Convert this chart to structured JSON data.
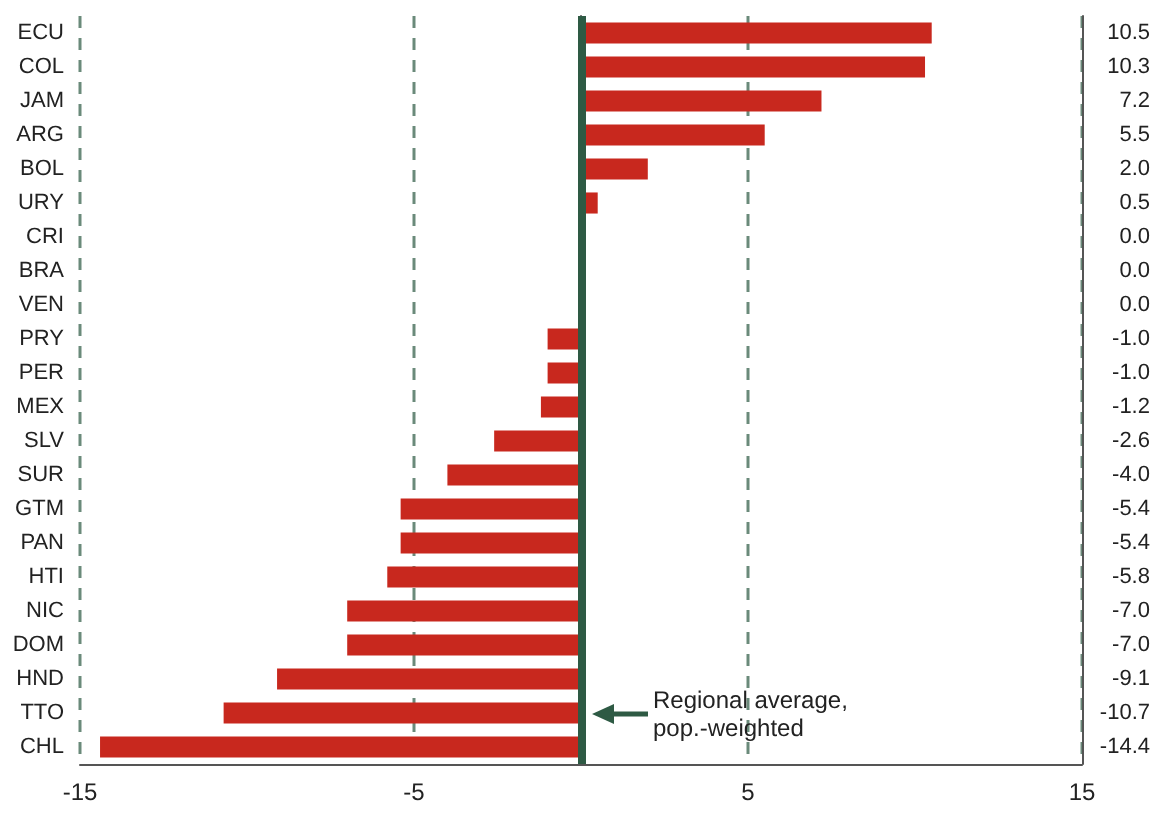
{
  "chart_data": {
    "type": "bar",
    "orientation": "horizontal",
    "categories": [
      "ECU",
      "COL",
      "JAM",
      "ARG",
      "BOL",
      "URY",
      "CRI",
      "BRA",
      "VEN",
      "PRY",
      "PER",
      "MEX",
      "SLV",
      "SUR",
      "GTM",
      "PAN",
      "HTI",
      "NIC",
      "DOM",
      "HND",
      "TTO",
      "CHL"
    ],
    "values": [
      10.5,
      10.3,
      7.2,
      5.5,
      2.0,
      0.5,
      0.0,
      0.0,
      0.0,
      -1.0,
      -1.0,
      -1.2,
      -2.6,
      -4.0,
      -5.4,
      -5.4,
      -5.8,
      -7.0,
      -7.0,
      -9.1,
      -10.7,
      -14.4
    ],
    "value_labels": [
      "10.5",
      "10.3",
      "7.2",
      "5.5",
      "2.0",
      "0.5",
      "0.0",
      "0.0",
      "0.0",
      "-1.0",
      "-1.0",
      "-1.2",
      "-2.6",
      "-4.0",
      "-5.4",
      "-5.4",
      "-5.8",
      "-7.0",
      "-7.0",
      "-9.1",
      "-10.7",
      "-14.4"
    ],
    "color": "#c8281e",
    "xlim": [
      -15,
      15
    ],
    "xticks": [
      -15,
      -5,
      5,
      15
    ],
    "grid": "x",
    "ref_lines": [
      {
        "axis": "x",
        "value": 0,
        "label": "Regional average, pop.-weighted",
        "color": "#2e5a44"
      }
    ]
  }
}
